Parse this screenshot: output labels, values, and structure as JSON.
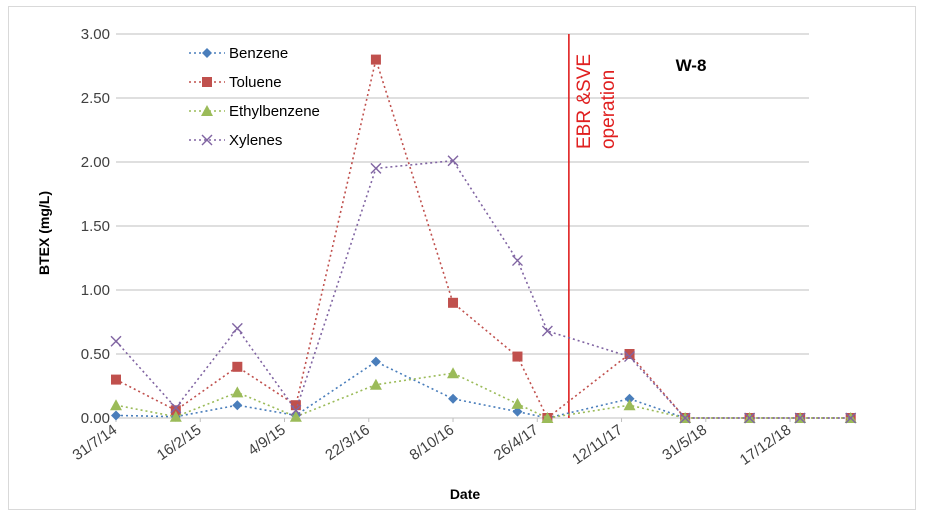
{
  "chart_data": {
    "type": "line",
    "title": "W-8",
    "xlabel": "Date",
    "ylabel": "BTEX (mg/L)",
    "ylim": [
      0,
      3.0
    ],
    "y_ticks": [
      "0.00",
      "0.50",
      "1.00",
      "1.50",
      "2.00",
      "2.50",
      "3.00"
    ],
    "x_tick_labels": [
      "31/7/14",
      "16/2/15",
      "4/9/15",
      "22/3/16",
      "8/10/16",
      "26/4/17",
      "12/11/17",
      "31/5/18",
      "17/12/18"
    ],
    "x_tick_dates": [
      "2014-07-31",
      "2015-02-16",
      "2015-09-04",
      "2016-03-22",
      "2016-10-08",
      "2017-04-26",
      "2017-11-12",
      "2018-05-31",
      "2018-12-17"
    ],
    "x_range": [
      "2014-07-31",
      "2019-01-31"
    ],
    "grid": "horizontal",
    "legend_position": "top-left",
    "annotation": {
      "text_lines": [
        "EBR &SVE",
        "operation"
      ],
      "date": "2017-07-10",
      "color": "#e02020"
    },
    "dates": [
      "2014-07-31",
      "2014-12-20",
      "2015-05-15",
      "2015-10-01",
      "2016-04-08",
      "2016-10-08",
      "2017-03-10",
      "2017-05-20",
      "2017-12-01",
      "2018-04-12",
      "2018-09-12",
      "2019-01-10",
      "2019-05-10"
    ],
    "series": [
      {
        "name": "Benzene",
        "color": "#4a7ebb",
        "marker": "diamond",
        "values": [
          0.02,
          0.01,
          0.1,
          0.02,
          0.44,
          0.15,
          0.05,
          0.0,
          0.15,
          0.0,
          0.0,
          0.0,
          0.0
        ]
      },
      {
        "name": "Toluene",
        "color": "#c0504d",
        "marker": "square",
        "values": [
          0.3,
          0.06,
          0.4,
          0.1,
          2.8,
          0.9,
          0.48,
          0.0,
          0.5,
          0.0,
          0.0,
          0.0,
          0.0
        ]
      },
      {
        "name": "Ethylbenzene",
        "color": "#9bbb59",
        "marker": "triangle",
        "values": [
          0.1,
          0.01,
          0.2,
          0.01,
          0.26,
          0.35,
          0.11,
          0.0,
          0.1,
          0.0,
          0.0,
          0.0,
          0.0
        ]
      },
      {
        "name": "Xylenes",
        "color": "#8064a2",
        "marker": "x",
        "values": [
          0.6,
          0.08,
          0.7,
          0.06,
          1.95,
          2.01,
          1.23,
          0.68,
          0.48,
          0.0,
          0.0,
          0.0,
          0.0
        ]
      }
    ]
  }
}
